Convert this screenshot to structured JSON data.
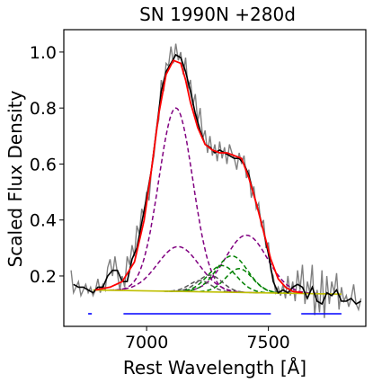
{
  "chart_data": {
    "type": "line",
    "title": "SN 1990N  +280d",
    "xlabel": "Rest Wavelength [Å]",
    "ylabel": "Scaled Flux Density",
    "xlim": [
      6660,
      7900
    ],
    "ylim": [
      0.02,
      1.08
    ],
    "xticks": [
      7000,
      7500
    ],
    "yticks": [
      0.2,
      0.4,
      0.6,
      0.8,
      1.0
    ],
    "xtick_labels": [
      "7000",
      "7500"
    ],
    "ytick_labels": [
      "0.2",
      "0.4",
      "0.6",
      "0.8",
      "1.0"
    ],
    "grid": false,
    "colors": {
      "observed": "#808080",
      "smoothed": "#000000",
      "fit": "#ff0000",
      "component_purple": "#800080",
      "component_green": "#008000",
      "component_gray": "#555555",
      "continuum": "#bfbf00",
      "regions": "#0000ff"
    },
    "continuum": {
      "x": [
        6780,
        7800
      ],
      "y": [
        0.15,
        0.135
      ]
    },
    "components": [
      {
        "color": "purple",
        "center": 7120,
        "sigma": 70,
        "amplitude": 0.655
      },
      {
        "color": "purple",
        "center": 7130,
        "sigma": 85,
        "amplitude": 0.16
      },
      {
        "color": "purple",
        "center": 7410,
        "sigma": 85,
        "amplitude": 0.205
      },
      {
        "color": "green",
        "center": 7350,
        "sigma": 65,
        "amplitude": 0.13
      },
      {
        "color": "green",
        "center": 7310,
        "sigma": 60,
        "amplitude": 0.095
      },
      {
        "color": "green",
        "center": 7380,
        "sigma": 55,
        "amplitude": 0.085
      },
      {
        "color": "gray",
        "center": 7260,
        "sigma": 50,
        "amplitude": 0.06
      },
      {
        "color": "gray",
        "center": 7220,
        "sigma": 45,
        "amplitude": 0.04
      }
    ],
    "fit": {
      "x": [
        6790,
        6850,
        6900,
        6950,
        6990,
        7020,
        7050,
        7080,
        7110,
        7140,
        7160,
        7180,
        7210,
        7240,
        7270,
        7300,
        7330,
        7360,
        7390,
        7420,
        7450,
        7480,
        7510,
        7540,
        7570,
        7600,
        7640
      ],
      "y": [
        0.15,
        0.16,
        0.18,
        0.25,
        0.4,
        0.58,
        0.78,
        0.92,
        0.97,
        0.96,
        0.9,
        0.82,
        0.73,
        0.67,
        0.65,
        0.64,
        0.64,
        0.63,
        0.62,
        0.55,
        0.46,
        0.36,
        0.26,
        0.19,
        0.16,
        0.145,
        0.14
      ]
    },
    "smoothed": {
      "x": [
        6700,
        6720,
        6740,
        6760,
        6780,
        6800,
        6820,
        6840,
        6860,
        6880,
        6900,
        6920,
        6940,
        6960,
        6980,
        7000,
        7020,
        7040,
        7060,
        7080,
        7100,
        7120,
        7140,
        7160,
        7180,
        7200,
        7220,
        7240,
        7260,
        7280,
        7300,
        7320,
        7340,
        7360,
        7380,
        7400,
        7420,
        7440,
        7460,
        7480,
        7500,
        7520,
        7540,
        7560,
        7580,
        7600,
        7620,
        7640,
        7660,
        7680,
        7700,
        7720,
        7740,
        7760,
        7780,
        7800,
        7820,
        7840,
        7860,
        7880
      ],
      "y": [
        0.17,
        0.16,
        0.16,
        0.15,
        0.14,
        0.16,
        0.16,
        0.2,
        0.22,
        0.22,
        0.18,
        0.18,
        0.26,
        0.3,
        0.39,
        0.48,
        0.58,
        0.72,
        0.86,
        0.93,
        0.96,
        0.99,
        0.98,
        0.93,
        0.86,
        0.78,
        0.72,
        0.67,
        0.66,
        0.64,
        0.65,
        0.64,
        0.63,
        0.62,
        0.62,
        0.6,
        0.56,
        0.49,
        0.43,
        0.36,
        0.28,
        0.18,
        0.14,
        0.15,
        0.14,
        0.16,
        0.17,
        0.16,
        0.12,
        0.16,
        0.11,
        0.1,
        0.14,
        0.13,
        0.15,
        0.11,
        0.11,
        0.12,
        0.1,
        0.11
      ]
    },
    "observed": {
      "x": [
        6690,
        6700,
        6710,
        6720,
        6730,
        6740,
        6750,
        6760,
        6770,
        6780,
        6790,
        6800,
        6810,
        6820,
        6830,
        6840,
        6850,
        6860,
        6870,
        6880,
        6890,
        6900,
        6910,
        6920,
        6930,
        6940,
        6950,
        6960,
        6970,
        6980,
        6990,
        7000,
        7010,
        7020,
        7030,
        7040,
        7050,
        7060,
        7070,
        7080,
        7090,
        7100,
        7110,
        7120,
        7130,
        7140,
        7150,
        7160,
        7170,
        7180,
        7190,
        7200,
        7210,
        7220,
        7230,
        7240,
        7250,
        7260,
        7270,
        7280,
        7290,
        7300,
        7310,
        7320,
        7330,
        7340,
        7350,
        7360,
        7370,
        7380,
        7390,
        7400,
        7410,
        7420,
        7430,
        7440,
        7450,
        7460,
        7470,
        7480,
        7490,
        7500,
        7510,
        7520,
        7530,
        7540,
        7550,
        7560,
        7570,
        7580,
        7590,
        7600,
        7610,
        7620,
        7630,
        7640,
        7650,
        7660,
        7670,
        7680,
        7690,
        7700,
        7710,
        7720,
        7730,
        7740,
        7750,
        7760,
        7770,
        7780,
        7790,
        7800,
        7810,
        7820,
        7830,
        7840,
        7850,
        7860,
        7870,
        7880
      ],
      "y": [
        0.22,
        0.14,
        0.16,
        0.18,
        0.13,
        0.15,
        0.17,
        0.14,
        0.16,
        0.13,
        0.15,
        0.19,
        0.14,
        0.17,
        0.15,
        0.23,
        0.26,
        0.2,
        0.27,
        0.21,
        0.15,
        0.2,
        0.16,
        0.27,
        0.24,
        0.31,
        0.27,
        0.38,
        0.35,
        0.44,
        0.41,
        0.5,
        0.47,
        0.58,
        0.63,
        0.72,
        0.76,
        0.9,
        0.86,
        0.96,
        0.95,
        1.02,
        0.96,
        1.03,
        0.97,
        1.0,
        0.92,
        0.98,
        0.87,
        0.9,
        0.81,
        0.85,
        0.75,
        0.8,
        0.69,
        0.72,
        0.64,
        0.7,
        0.63,
        0.67,
        0.61,
        0.68,
        0.62,
        0.66,
        0.6,
        0.67,
        0.64,
        0.62,
        0.58,
        0.64,
        0.6,
        0.63,
        0.55,
        0.58,
        0.48,
        0.52,
        0.44,
        0.46,
        0.38,
        0.4,
        0.3,
        0.32,
        0.22,
        0.2,
        0.14,
        0.16,
        0.13,
        0.17,
        0.12,
        0.2,
        0.13,
        0.18,
        0.11,
        0.22,
        0.15,
        0.24,
        0.1,
        0.18,
        0.14,
        0.24,
        0.06,
        0.15,
        0.07,
        0.22,
        0.05,
        0.2,
        0.1,
        0.18,
        0.14,
        0.21,
        0.08,
        0.16,
        0.11,
        0.13,
        0.09,
        0.12,
        0.17,
        0.1,
        0.08,
        0.12
      ]
    },
    "regions": [
      {
        "x": [
          6760,
          6775
        ],
        "y": 0.065
      },
      {
        "x": [
          6905,
          7510
        ],
        "y": 0.065
      },
      {
        "x": [
          7635,
          7800
        ],
        "y": 0.065
      }
    ]
  }
}
